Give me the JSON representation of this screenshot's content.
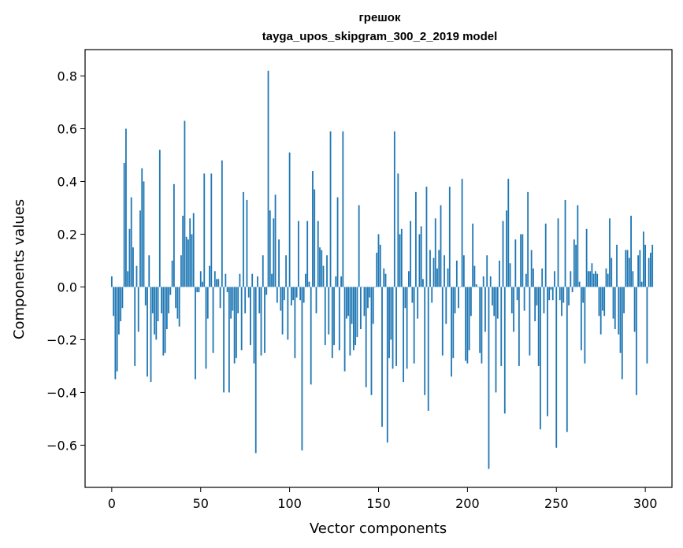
{
  "chart_data": {
    "type": "bar",
    "title": "грешок",
    "subtitle": "tayga_upos_skipgram_300_2_2019 model",
    "xlabel": "Vector components",
    "ylabel": "Components values",
    "xlim": [
      -15,
      315
    ],
    "ylim": [
      -0.76,
      0.9
    ],
    "xticks": [
      0,
      50,
      100,
      150,
      200,
      250,
      300
    ],
    "yticks": [
      -0.6,
      -0.4,
      -0.2,
      0.0,
      0.2,
      0.4,
      0.6,
      0.8
    ],
    "xtick_labels": [
      "0",
      "50",
      "100",
      "150",
      "200",
      "250",
      "300"
    ],
    "ytick_labels": [
      "−0.6",
      "−0.4",
      "−0.2",
      "0.0",
      "0.2",
      "0.4",
      "0.6",
      "0.8"
    ],
    "grid": false,
    "bar_color": "#1f77b4",
    "values": [
      0.04,
      -0.11,
      -0.35,
      -0.32,
      -0.18,
      -0.13,
      -0.08,
      0.47,
      0.6,
      0.06,
      0.22,
      0.34,
      0.15,
      -0.3,
      0.08,
      -0.17,
      0.29,
      0.45,
      0.4,
      -0.07,
      -0.34,
      0.12,
      -0.36,
      -0.1,
      -0.18,
      -0.2,
      -0.13,
      0.52,
      -0.1,
      -0.26,
      -0.25,
      -0.16,
      -0.1,
      -0.03,
      0.1,
      0.39,
      -0.08,
      -0.12,
      -0.15,
      0.12,
      0.27,
      0.63,
      0.19,
      0.18,
      0.26,
      0.2,
      0.28,
      -0.35,
      -0.02,
      -0.02,
      0.06,
      0.02,
      0.43,
      -0.31,
      -0.12,
      0.08,
      0.43,
      -0.25,
      0.06,
      0.03,
      0.03,
      -0.08,
      0.48,
      -0.4,
      0.05,
      -0.02,
      -0.4,
      -0.12,
      -0.09,
      -0.29,
      -0.27,
      -0.1,
      0.05,
      -0.24,
      0.36,
      -0.1,
      0.33,
      -0.04,
      -0.22,
      0.05,
      -0.29,
      -0.63,
      0.04,
      -0.1,
      -0.26,
      0.12,
      -0.25,
      -0.03,
      0.82,
      0.29,
      0.05,
      0.26,
      0.35,
      -0.06,
      0.18,
      -0.09,
      -0.18,
      -0.05,
      0.12,
      -0.2,
      0.51,
      -0.07,
      -0.05,
      -0.27,
      -0.04,
      0.25,
      -0.05,
      -0.62,
      -0.06,
      0.05,
      0.25,
      0.02,
      -0.37,
      0.44,
      0.37,
      -0.1,
      0.25,
      0.15,
      0.14,
      0.08,
      -0.22,
      0.12,
      -0.18,
      0.59,
      -0.27,
      -0.22,
      0.04,
      0.34,
      -0.24,
      0.04,
      0.59,
      -0.32,
      -0.12,
      -0.11,
      -0.26,
      -0.14,
      -0.24,
      -0.22,
      -0.19,
      0.31,
      -0.16,
      0.0,
      -0.11,
      -0.38,
      -0.08,
      -0.04,
      -0.41,
      -0.14,
      0.0,
      0.13,
      0.2,
      0.16,
      -0.53,
      0.07,
      0.05,
      -0.59,
      -0.27,
      -0.2,
      -0.31,
      0.59,
      -0.3,
      0.43,
      0.2,
      0.22,
      -0.36,
      -0.08,
      -0.31,
      0.06,
      0.25,
      -0.06,
      -0.29,
      0.36,
      -0.12,
      0.2,
      0.23,
      0.03,
      -0.41,
      0.38,
      -0.47,
      0.14,
      -0.06,
      0.11,
      0.26,
      0.07,
      0.14,
      0.31,
      -0.26,
      0.12,
      -0.14,
      0.07,
      0.38,
      -0.34,
      -0.27,
      -0.1,
      0.1,
      -0.08,
      0.0,
      0.41,
      0.12,
      -0.28,
      -0.29,
      -0.24,
      -0.11,
      0.24,
      0.08,
      0.01,
      0.0,
      -0.25,
      -0.29,
      0.04,
      -0.17,
      0.12,
      -0.69,
      0.04,
      -0.07,
      -0.11,
      -0.4,
      -0.12,
      0.1,
      -0.3,
      0.25,
      -0.48,
      0.29,
      0.41,
      0.09,
      -0.1,
      -0.17,
      0.18,
      -0.05,
      -0.3,
      0.2,
      0.2,
      -0.09,
      0.05,
      0.36,
      -0.26,
      0.14,
      0.07,
      -0.13,
      -0.07,
      -0.3,
      -0.54,
      0.07,
      -0.1,
      0.24,
      -0.49,
      -0.05,
      -0.01,
      -0.05,
      0.06,
      -0.61,
      0.26,
      -0.05,
      -0.11,
      -0.06,
      0.33,
      -0.55,
      -0.07,
      0.06,
      -0.02,
      0.18,
      0.16,
      0.31,
      0.02,
      -0.24,
      -0.06,
      -0.29,
      0.22,
      0.06,
      0.06,
      0.09,
      0.05,
      0.06,
      0.05,
      -0.11,
      -0.18,
      -0.09,
      -0.11,
      0.07,
      0.05,
      0.26,
      0.11,
      -0.12,
      -0.16,
      0.16,
      -0.18,
      -0.25,
      -0.35,
      -0.1,
      0.14,
      0.14,
      0.11,
      0.27,
      0.06,
      -0.17,
      -0.41,
      0.12,
      0.14,
      0.02,
      0.21,
      0.16,
      -0.29,
      0.11,
      0.13,
      0.16
    ]
  }
}
